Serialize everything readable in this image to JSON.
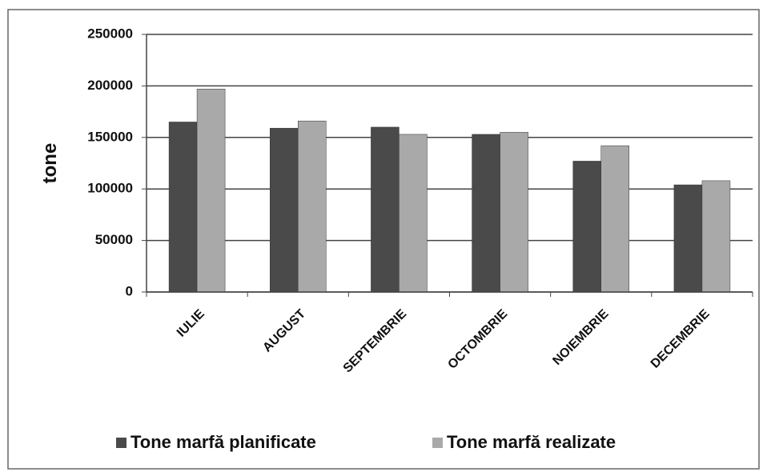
{
  "chart_data": {
    "type": "bar",
    "y_label": "tone",
    "categories": [
      "IULIE",
      "AUGUST",
      "SEPTEMBRIE",
      "OCTOMBRIE",
      "NOIEMBRIE",
      "DECEMBRIE"
    ],
    "series": [
      {
        "name": "Tone marfă planificate",
        "color": "#4a4a4a",
        "values": [
          165000,
          159000,
          160000,
          153000,
          127000,
          104000
        ]
      },
      {
        "name": "Tone marfă realizate",
        "color": "#a9a9a9",
        "values": [
          197000,
          166000,
          153000,
          155000,
          142000,
          108000
        ]
      }
    ],
    "ylim": [
      0,
      250000
    ],
    "yticks": [
      0,
      50000,
      100000,
      150000,
      200000,
      250000
    ],
    "grid": true,
    "legend": "bottom"
  }
}
